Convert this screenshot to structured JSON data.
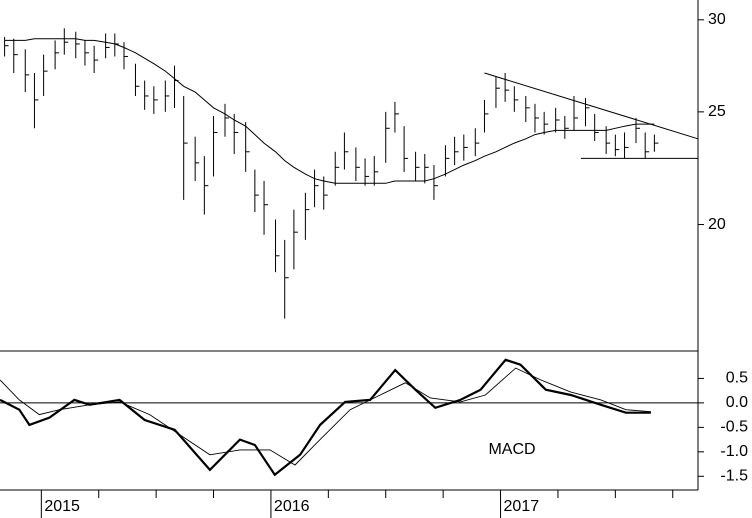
{
  "chart_data": [
    {
      "type": "ohlc",
      "log_scale": true,
      "color": "#000000",
      "xlim": [
        2014.82,
        2017.86
      ],
      "ylim": [
        15.6,
        31.2
      ],
      "yticks": [
        20,
        25,
        30
      ],
      "x": [
        2014.84,
        2014.88,
        2014.93,
        2014.97,
        2015.01,
        2015.06,
        2015.1,
        2015.15,
        2015.19,
        2015.23,
        2015.28,
        2015.32,
        2015.36,
        2015.41,
        2015.45,
        2015.49,
        2015.54,
        2015.58,
        2015.62,
        2015.67,
        2015.71,
        2015.75,
        2015.8,
        2015.84,
        2015.89,
        2015.93,
        2015.97,
        2016.02,
        2016.06,
        2016.1,
        2016.15,
        2016.19,
        2016.23,
        2016.28,
        2016.32,
        2016.37,
        2016.41,
        2016.45,
        2016.5,
        2016.54,
        2016.58,
        2016.63,
        2016.67,
        2016.71,
        2016.76,
        2016.8,
        2016.84,
        2016.89,
        2016.93,
        2016.98,
        2017.02,
        2017.06,
        2017.11,
        2017.15,
        2017.19,
        2017.24,
        2017.28,
        2017.32,
        2017.37,
        2017.41,
        2017.46,
        2017.5,
        2017.54,
        2017.59,
        2017.63,
        2017.67
      ],
      "high": [
        29.0,
        28.9,
        28.3,
        27.0,
        28.0,
        28.8,
        29.5,
        29.3,
        28.8,
        28.5,
        29.2,
        29.2,
        28.7,
        27.5,
        26.6,
        26.3,
        26.6,
        27.4,
        25.8,
        23.8,
        22.9,
        24.8,
        25.4,
        24.9,
        24.5,
        22.3,
        21.8,
        20.2,
        19.4,
        20.6,
        21.3,
        22.3,
        22.0,
        23.1,
        24.0,
        23.3,
        22.8,
        22.9,
        25.0,
        25.5,
        24.3,
        23.1,
        23.0,
        22.5,
        23.4,
        23.8,
        23.9,
        24.2,
        25.6,
        26.8,
        27.0,
        26.3,
        25.8,
        25.4,
        25.0,
        25.2,
        24.8,
        25.8,
        25.7,
        24.9,
        24.3,
        23.9,
        24.0,
        24.7,
        24.0,
        23.9
      ],
      "low": [
        27.9,
        27.0,
        26.0,
        24.2,
        25.8,
        27.2,
        28.0,
        27.8,
        27.4,
        27.0,
        27.8,
        27.9,
        27.2,
        25.8,
        25.1,
        24.9,
        25.0,
        25.2,
        21.0,
        21.8,
        20.4,
        22.0,
        23.8,
        23.0,
        22.2,
        20.5,
        19.6,
        18.2,
        16.6,
        18.3,
        19.4,
        20.7,
        20.6,
        21.6,
        22.3,
        21.8,
        21.6,
        21.6,
        22.6,
        24.0,
        22.2,
        21.8,
        21.7,
        21.0,
        22.0,
        22.5,
        22.7,
        22.9,
        24.0,
        25.2,
        25.5,
        25.0,
        24.5,
        24.0,
        23.9,
        24.0,
        23.7,
        24.1,
        24.3,
        23.6,
        23.0,
        22.9,
        22.8,
        23.5,
        22.8,
        23.1
      ],
      "close": [
        28.5,
        28.0,
        26.9,
        25.6,
        27.1,
        28.1,
        28.7,
        28.6,
        28.1,
        27.7,
        28.4,
        28.6,
        27.9,
        26.3,
        25.8,
        25.6,
        25.8,
        26.6,
        23.5,
        22.6,
        21.6,
        24.0,
        24.7,
        24.0,
        23.1,
        21.2,
        20.8,
        18.8,
        18.0,
        19.7,
        20.6,
        21.6,
        21.2,
        22.4,
        23.1,
        22.4,
        22.0,
        22.2,
        24.2,
        24.9,
        22.8,
        22.4,
        22.4,
        21.6,
        22.8,
        23.1,
        23.3,
        23.5,
        24.9,
        26.2,
        26.1,
        25.6,
        25.2,
        24.7,
        24.4,
        24.6,
        24.2,
        24.7,
        25.2,
        24.0,
        23.5,
        23.2,
        23.3,
        24.2,
        23.1,
        23.5
      ],
      "ma": [
        28.8,
        28.8,
        28.8,
        28.9,
        28.9,
        28.9,
        28.9,
        28.9,
        28.8,
        28.8,
        28.7,
        28.6,
        28.4,
        28.1,
        27.8,
        27.5,
        27.1,
        26.7,
        26.3,
        26.0,
        25.6,
        25.2,
        24.9,
        24.6,
        24.3,
        23.9,
        23.5,
        23.1,
        22.7,
        22.4,
        22.1,
        21.9,
        21.8,
        21.7,
        21.7,
        21.7,
        21.7,
        21.7,
        21.7,
        21.8,
        21.8,
        21.8,
        21.8,
        21.9,
        22.1,
        22.3,
        22.5,
        22.7,
        22.9,
        23.1,
        23.3,
        23.5,
        23.7,
        23.9,
        24.0,
        24.1,
        24.1,
        24.1,
        24.1,
        24.1,
        24.1,
        24.2,
        24.3,
        24.4,
        24.4,
        24.4
      ],
      "trendlines": [
        {
          "x": [
            2016.93,
            2017.86
          ],
          "values": [
            27.0,
            23.7
          ]
        },
        {
          "x": [
            2017.35,
            2017.86
          ],
          "values": [
            22.8,
            22.8
          ]
        }
      ]
    },
    {
      "type": "line",
      "annotation": "MACD",
      "reference_line": 0,
      "xlim": [
        2014.82,
        2017.86
      ],
      "ylim": [
        -1.78,
        1.06
      ],
      "xticks": [
        2015,
        2016,
        2017
      ],
      "xminorticks": [
        2015.25,
        2015.5,
        2015.75,
        2016.25,
        2016.5,
        2016.75,
        2017.25,
        2017.5,
        2017.75
      ],
      "yticks": [
        0.5,
        {
          "value": 0,
          "label": "0.0"
        },
        -0.5,
        {
          "value": -1,
          "label": "-1.0"
        },
        -1.5
      ],
      "series": [
        {
          "color": "#000000",
          "width": 2.2,
          "x": [
            2014.82,
            2014.904,
            2014.948,
            2015.035,
            2015.144,
            2015.21,
            2015.341,
            2015.45,
            2015.581,
            2015.734,
            2015.865,
            2015.93,
            2016.017,
            2016.127,
            2016.214,
            2016.323,
            2016.432,
            2016.541,
            2016.629,
            2016.716,
            2016.825,
            2016.913,
            2017.022,
            2017.087,
            2017.197,
            2017.306,
            2017.437,
            2017.546,
            2017.655
          ],
          "values": [
            0.06,
            -0.14,
            -0.45,
            -0.3,
            0.06,
            -0.04,
            0.06,
            -0.35,
            -0.55,
            -1.37,
            -0.75,
            -0.86,
            -1.47,
            -1.06,
            -0.45,
            0.02,
            0.06,
            0.67,
            0.27,
            -0.1,
            0.06,
            0.27,
            0.88,
            0.78,
            0.27,
            0.16,
            -0.04,
            -0.2,
            -0.2
          ]
        },
        {
          "color": "#000000",
          "width": 0.9,
          "x": [
            2014.82,
            2014.904,
            2014.991,
            2015.079,
            2015.21,
            2015.341,
            2015.472,
            2015.603,
            2015.734,
            2015.865,
            2015.996,
            2016.105,
            2016.214,
            2016.345,
            2016.476,
            2016.585,
            2016.694,
            2016.825,
            2016.934,
            2017.066,
            2017.175,
            2017.306,
            2017.437,
            2017.546,
            2017.655
          ],
          "values": [
            0.47,
            0.06,
            -0.24,
            -0.14,
            -0.04,
            0.02,
            -0.24,
            -0.65,
            -1.06,
            -0.96,
            -0.96,
            -1.27,
            -0.75,
            -0.14,
            0.16,
            0.41,
            0.1,
            0.02,
            0.16,
            0.71,
            0.47,
            0.22,
            0.06,
            -0.14,
            -0.18
          ]
        }
      ]
    }
  ]
}
